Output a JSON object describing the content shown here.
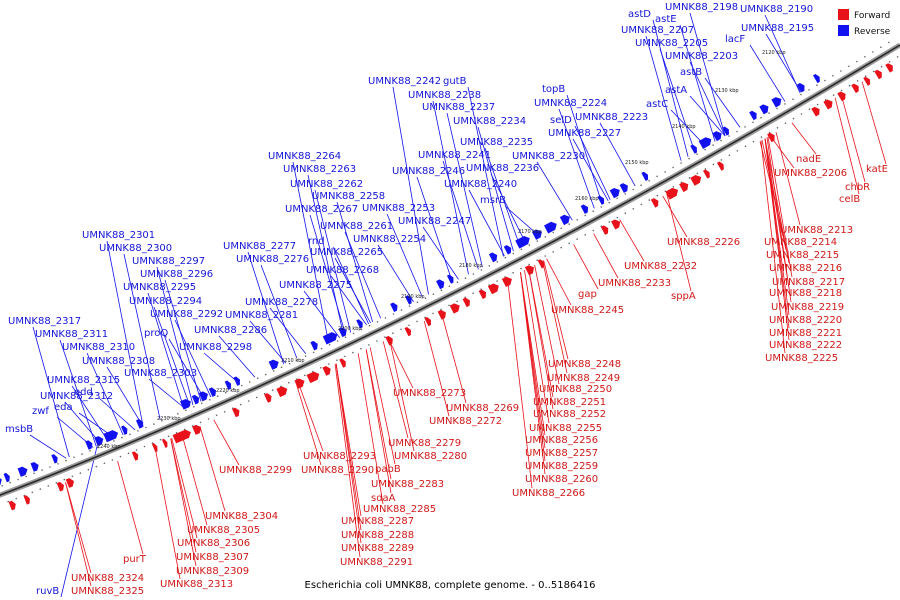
{
  "caption": "Escherichia coli UMNK88, complete genome. - 0..5186416",
  "legend": [
    {
      "label": "Forward",
      "color": "#e8121a"
    },
    {
      "label": "Reverse",
      "color": "#1212f0"
    }
  ],
  "ticks": [
    "2120 kbp",
    "2130 kbp",
    "2140 kbp",
    "2150 kbp",
    "2160 kbp",
    "2170 kbp",
    "2180 kbp",
    "2190 kbp",
    "2200 kbp",
    "2210 kbp",
    "2220 kbp",
    "2230 kbp",
    "2240 kbp"
  ],
  "reverse_labels": [
    "UMNK88_2198",
    "UMNK88_2190",
    "astD",
    "astE",
    "UMNK88_2207",
    "UMNK88_2195",
    "UMNK88_2205",
    "lacF",
    "UMNK88_2203",
    "astB",
    "astA",
    "astC",
    "UMNK88_2242",
    "gutB",
    "UMNK88_2238",
    "UMNK88_2237",
    "topB",
    "UMNK88_2224",
    "selD",
    "UMNK88_2223",
    "UMNK88_2234",
    "UMNK88_2227",
    "UMNK88_2235",
    "UMNK88_2230",
    "UMNK88_2241",
    "UMNK88_2236",
    "UMNK88_2264",
    "UMNK88_2246",
    "UMNK88_2263",
    "UMNK88_2262",
    "UMNK88_2240",
    "UMNK88_2258",
    "msrB",
    "UMNK88_2267",
    "UMNK88_2253",
    "UMNK88_2261",
    "UMNK88_2247",
    "UMNK88_2301",
    "UMNK88_2277",
    "rnd",
    "UMNK88_2254",
    "UMNK88_2300",
    "UMNK88_2276",
    "UMNK88_2265",
    "UMNK88_2297",
    "UMNK88_2268",
    "UMNK88_2296",
    "UMNK88_2295",
    "UMNK88_2275",
    "UMNK88_2294",
    "UMNK88_2278",
    "UMNK88_2317",
    "UMNK88_2292",
    "UMNK88_2281",
    "UMNK88_2311",
    "proQ",
    "UMNK88_2286",
    "UMNK88_2310",
    "UMNK88_2298",
    "UMNK88_2308",
    "UMNK88_2303",
    "UMNK88_2315",
    "edd",
    "UMNK88_2312",
    "zwf",
    "eda",
    "msbB",
    "ruvB"
  ],
  "forward_labels": [
    "katE",
    "nadE",
    "UMNK88_2206",
    "chbR",
    "celB",
    "UMNK88_2213",
    "UMNK88_2214",
    "UMNK88_2226",
    "UMNK88_2215",
    "UMNK88_2216",
    "UMNK88_2232",
    "UMNK88_2217",
    "UMNK88_2233",
    "sppA",
    "UMNK88_2218",
    "gap",
    "UMNK88_2219",
    "UMNK88_2245",
    "UMNK88_2220",
    "UMNK88_2221",
    "UMNK88_2222",
    "UMNK88_2225",
    "UMNK88_2248",
    "UMNK88_2249",
    "UMNK88_2250",
    "UMNK88_2273",
    "UMNK88_2251",
    "UMNK88_2269",
    "UMNK88_2252",
    "UMNK88_2272",
    "UMNK88_2255",
    "UMNK88_2279",
    "UMNK88_2256",
    "UMNK88_2280",
    "UMNK88_2257",
    "UMNK88_2293",
    "UMNK88_2299",
    "UMNK88_2290",
    "pabB",
    "UMNK88_2259",
    "UMNK88_2260",
    "UMNK88_2283",
    "sdaA",
    "UMNK88_2266",
    "UMNK88_2285",
    "UMNK88_2304",
    "UMNK88_2287",
    "UMNK88_2305",
    "UMNK88_2288",
    "UMNK88_2306",
    "UMNK88_2289",
    "purT",
    "UMNK88_2307",
    "UMNK88_2291",
    "UMNK88_2309",
    "UMNK88_2313",
    "UMNK88_2324",
    "UMNK88_2325"
  ]
}
